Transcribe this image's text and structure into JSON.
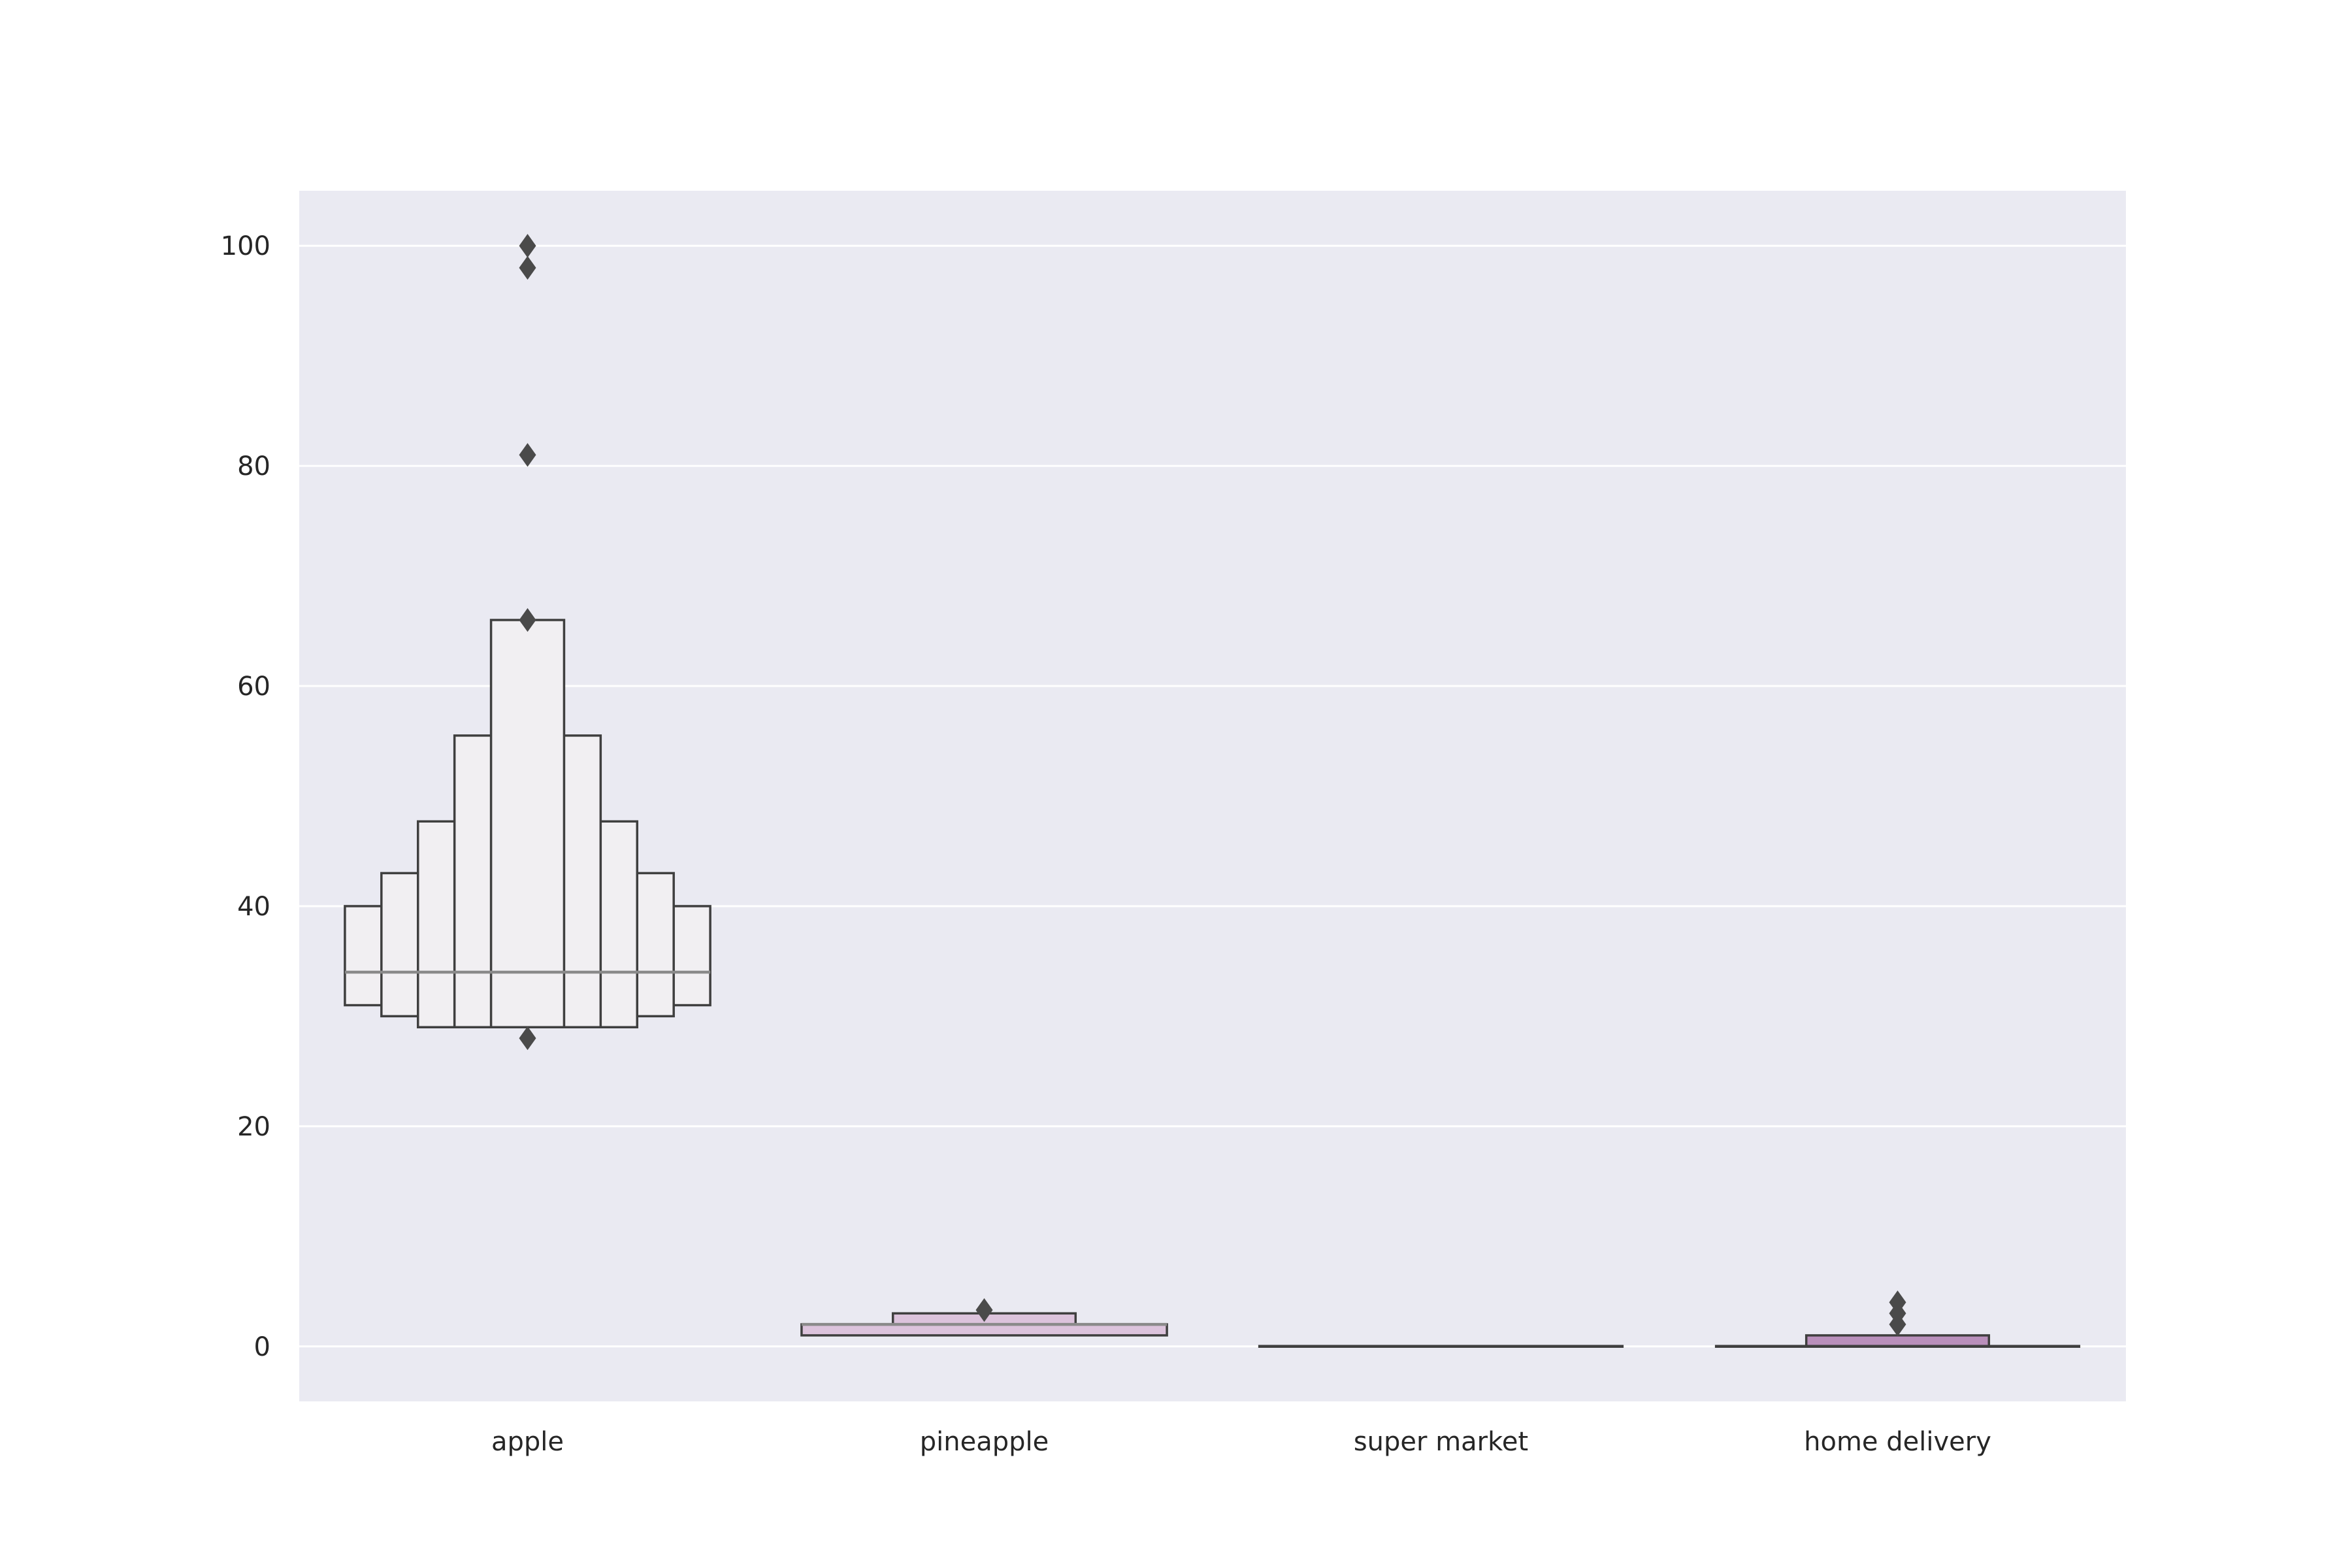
{
  "chart_data": {
    "type": "boxen",
    "title": "",
    "xlabel": "",
    "ylabel": "",
    "categories": [
      "apple",
      "pineapple",
      "super market",
      "home delivery"
    ],
    "ylim": [
      -5,
      105
    ],
    "yticks": [
      0,
      20,
      40,
      60,
      80,
      100
    ],
    "grid": true,
    "colors": {
      "plot_background": "#eaeaf2",
      "grid": "#ffffff",
      "edge": "#3f3f3f",
      "median": "#8a8a8a",
      "outlier": "#4a4a4a"
    },
    "boxes": [
      {
        "category": "apple",
        "median": 34,
        "color": "#f1eff2",
        "levels": [
          {
            "low": 31,
            "high": 40
          },
          {
            "low": 30,
            "high": 43
          },
          {
            "low": 29,
            "high": 47.7
          },
          {
            "low": 29,
            "high": 55.5
          },
          {
            "low": 29,
            "high": 66
          }
        ],
        "outliers": [
          28,
          66,
          81,
          98,
          100
        ]
      },
      {
        "category": "pineapple",
        "median": 2,
        "color": "#dcc3dc",
        "levels": [
          {
            "low": 1,
            "high": 2
          },
          {
            "low": 2,
            "high": 3
          }
        ],
        "outliers": [
          3.3
        ]
      },
      {
        "category": "super market",
        "median": 0,
        "color": "#c9a6c9",
        "levels": [
          {
            "low": 0,
            "high": 0
          }
        ],
        "outliers": []
      },
      {
        "category": "home delivery",
        "median": 0,
        "color": "#b98fbb",
        "levels": [
          {
            "low": 0,
            "high": 0
          },
          {
            "low": 0,
            "high": 1
          }
        ],
        "outliers": [
          2,
          3,
          4
        ]
      }
    ]
  }
}
